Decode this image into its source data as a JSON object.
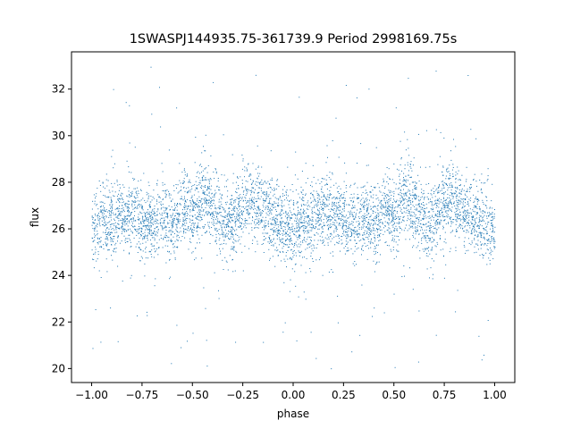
{
  "chart_data": {
    "type": "scatter",
    "title": "1SWASPJ144935.75-361739.9 Period 2998169.75s",
    "xlabel": "phase",
    "ylabel": "flux",
    "xlim": [
      -1.1,
      1.1
    ],
    "ylim": [
      19.4,
      33.6
    ],
    "xticks": [
      -1.0,
      -0.75,
      -0.5,
      -0.25,
      0.0,
      0.25,
      0.5,
      0.75,
      1.0
    ],
    "xtick_labels": [
      "−1.00",
      "−0.75",
      "−0.50",
      "−0.25",
      "0.00",
      "0.25",
      "0.50",
      "0.75",
      "1.00"
    ],
    "yticks": [
      20,
      22,
      24,
      26,
      28,
      30,
      32
    ],
    "ytick_labels": [
      "20",
      "22",
      "24",
      "26",
      "28",
      "30",
      "32"
    ],
    "grid": false,
    "legend": "none",
    "marker_color": "#1f77b4",
    "series": [
      {
        "x_range": [
          -1.0,
          1.0
        ],
        "points": [
          [
            -1.0,
            26.0
          ],
          [
            -0.95,
            26.3
          ],
          [
            -0.9,
            26.4
          ],
          [
            -0.85,
            26.7
          ],
          [
            -0.8,
            26.8
          ],
          [
            -0.75,
            26.3
          ],
          [
            -0.7,
            26.2
          ],
          [
            -0.65,
            26.6
          ],
          [
            -0.6,
            26.1
          ],
          [
            -0.55,
            27.0
          ],
          [
            -0.5,
            26.5
          ],
          [
            -0.45,
            27.5
          ],
          [
            -0.4,
            27.0
          ],
          [
            -0.35,
            26.3
          ],
          [
            -0.3,
            26.4
          ],
          [
            -0.25,
            27.2
          ],
          [
            -0.2,
            27.3
          ],
          [
            -0.15,
            26.8
          ],
          [
            -0.1,
            26.5
          ],
          [
            -0.05,
            26.2
          ],
          [
            0.0,
            26.0
          ],
          [
            0.05,
            26.2
          ],
          [
            0.1,
            26.4
          ],
          [
            0.15,
            26.7
          ],
          [
            0.2,
            26.8
          ],
          [
            0.25,
            26.3
          ],
          [
            0.3,
            26.2
          ],
          [
            0.35,
            26.6
          ],
          [
            0.4,
            26.1
          ],
          [
            0.45,
            27.0
          ],
          [
            0.5,
            26.5
          ],
          [
            0.55,
            27.5
          ],
          [
            0.6,
            27.0
          ],
          [
            0.65,
            26.3
          ],
          [
            0.7,
            26.4
          ],
          [
            0.75,
            27.2
          ],
          [
            0.8,
            27.3
          ],
          [
            0.85,
            26.8
          ],
          [
            0.9,
            26.5
          ],
          [
            0.95,
            26.2
          ],
          [
            1.0,
            26.0
          ]
        ],
        "typical_scatter": 1.1,
        "outlier_range": [
          20.0,
          33.2
        ]
      }
    ]
  }
}
